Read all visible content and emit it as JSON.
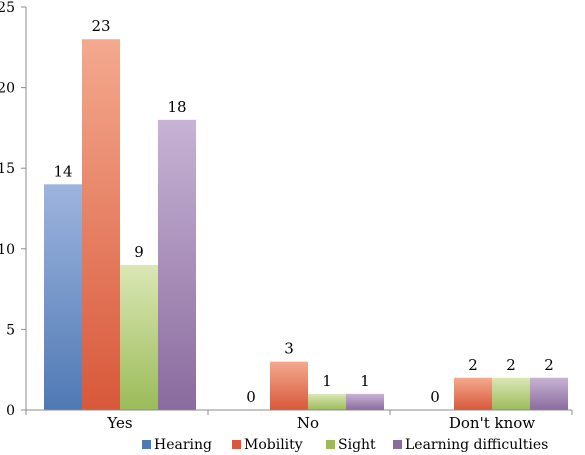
{
  "chart_data": {
    "type": "bar",
    "title": "",
    "xlabel": "",
    "ylabel": "",
    "categories": [
      "Yes",
      "No",
      "Don't know"
    ],
    "ylim": [
      0,
      25
    ],
    "yticks": [
      0,
      5,
      10,
      15,
      20,
      25
    ],
    "grid": false,
    "legend_position": "bottom",
    "series": [
      {
        "name": "Hearing",
        "values": [
          14,
          0,
          0
        ],
        "color_top": "#9db4de",
        "color_bottom": "#4f79b4"
      },
      {
        "name": "Mobility",
        "values": [
          23,
          3,
          2
        ],
        "color_top": "#f4a98e",
        "color_bottom": "#d8583a"
      },
      {
        "name": "Sight",
        "values": [
          9,
          1,
          2
        ],
        "color_top": "#dbe7b5",
        "color_bottom": "#9bbb59"
      },
      {
        "name": "Learning difficulties",
        "values": [
          18,
          1,
          2
        ],
        "color_top": "#c7b3d4",
        "color_bottom": "#8a6b9e"
      }
    ]
  }
}
